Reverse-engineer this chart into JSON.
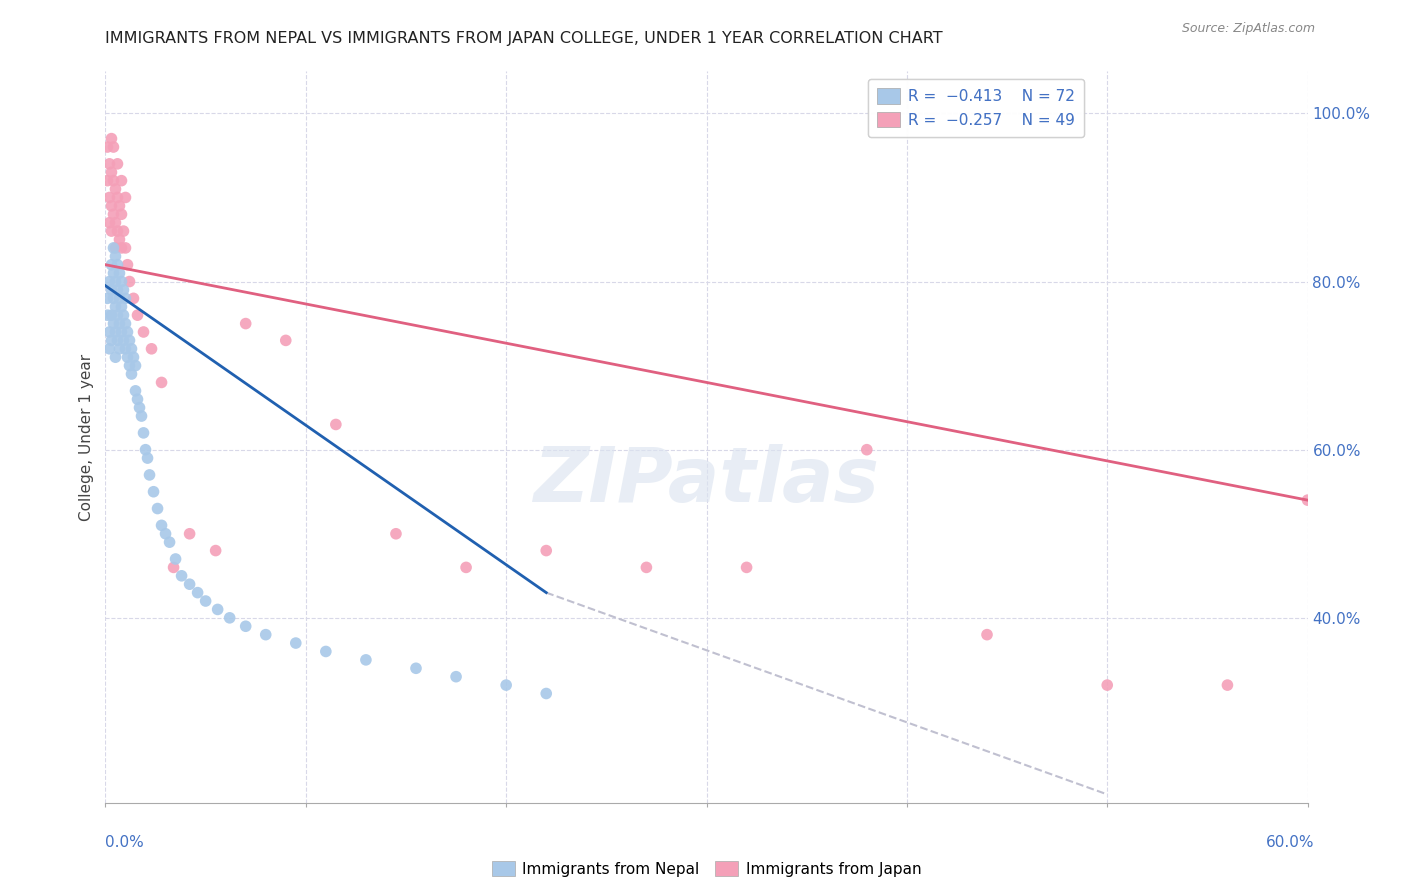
{
  "title": "IMMIGRANTS FROM NEPAL VS IMMIGRANTS FROM JAPAN COLLEGE, UNDER 1 YEAR CORRELATION CHART",
  "source": "Source: ZipAtlas.com",
  "ylabel": "College, Under 1 year",
  "ylabel_right_ticks": [
    "100.0%",
    "80.0%",
    "60.0%",
    "40.0%"
  ],
  "ylabel_right_vals": [
    1.0,
    0.8,
    0.6,
    0.4
  ],
  "xlim": [
    0.0,
    0.6
  ],
  "ylim": [
    0.18,
    1.05
  ],
  "watermark": "ZIPatlas",
  "nepal_color": "#a8c8e8",
  "japan_color": "#f4a0b8",
  "nepal_trend_color": "#2060b0",
  "japan_trend_color": "#e06080",
  "dashed_color": "#c0c0d0",
  "nepal_scatter_x": [
    0.001,
    0.001,
    0.002,
    0.002,
    0.002,
    0.003,
    0.003,
    0.003,
    0.003,
    0.004,
    0.004,
    0.004,
    0.004,
    0.005,
    0.005,
    0.005,
    0.005,
    0.005,
    0.006,
    0.006,
    0.006,
    0.006,
    0.007,
    0.007,
    0.007,
    0.007,
    0.008,
    0.008,
    0.008,
    0.009,
    0.009,
    0.009,
    0.01,
    0.01,
    0.01,
    0.011,
    0.011,
    0.012,
    0.012,
    0.013,
    0.013,
    0.014,
    0.015,
    0.015,
    0.016,
    0.017,
    0.018,
    0.019,
    0.02,
    0.021,
    0.022,
    0.024,
    0.026,
    0.028,
    0.03,
    0.032,
    0.035,
    0.038,
    0.042,
    0.046,
    0.05,
    0.056,
    0.062,
    0.07,
    0.08,
    0.095,
    0.11,
    0.13,
    0.155,
    0.175,
    0.2,
    0.22
  ],
  "nepal_scatter_y": [
    0.78,
    0.76,
    0.8,
    0.74,
    0.72,
    0.82,
    0.79,
    0.76,
    0.73,
    0.84,
    0.81,
    0.78,
    0.75,
    0.83,
    0.8,
    0.77,
    0.74,
    0.71,
    0.82,
    0.79,
    0.76,
    0.73,
    0.81,
    0.78,
    0.75,
    0.72,
    0.8,
    0.77,
    0.74,
    0.79,
    0.76,
    0.73,
    0.78,
    0.75,
    0.72,
    0.74,
    0.71,
    0.73,
    0.7,
    0.72,
    0.69,
    0.71,
    0.7,
    0.67,
    0.66,
    0.65,
    0.64,
    0.62,
    0.6,
    0.59,
    0.57,
    0.55,
    0.53,
    0.51,
    0.5,
    0.49,
    0.47,
    0.45,
    0.44,
    0.43,
    0.42,
    0.41,
    0.4,
    0.39,
    0.38,
    0.37,
    0.36,
    0.35,
    0.34,
    0.33,
    0.32,
    0.31
  ],
  "japan_scatter_x": [
    0.001,
    0.001,
    0.002,
    0.002,
    0.002,
    0.003,
    0.003,
    0.003,
    0.004,
    0.004,
    0.005,
    0.005,
    0.005,
    0.006,
    0.006,
    0.007,
    0.007,
    0.008,
    0.008,
    0.009,
    0.01,
    0.011,
    0.012,
    0.014,
    0.016,
    0.019,
    0.023,
    0.028,
    0.034,
    0.042,
    0.055,
    0.07,
    0.09,
    0.115,
    0.145,
    0.18,
    0.22,
    0.27,
    0.32,
    0.38,
    0.44,
    0.5,
    0.56,
    0.6,
    0.003,
    0.004,
    0.006,
    0.008,
    0.01
  ],
  "japan_scatter_y": [
    0.96,
    0.92,
    0.94,
    0.9,
    0.87,
    0.93,
    0.89,
    0.86,
    0.92,
    0.88,
    0.91,
    0.87,
    0.84,
    0.9,
    0.86,
    0.89,
    0.85,
    0.88,
    0.84,
    0.86,
    0.84,
    0.82,
    0.8,
    0.78,
    0.76,
    0.74,
    0.72,
    0.68,
    0.46,
    0.5,
    0.48,
    0.75,
    0.73,
    0.63,
    0.5,
    0.46,
    0.48,
    0.46,
    0.46,
    0.6,
    0.38,
    0.32,
    0.32,
    0.54,
    0.97,
    0.96,
    0.94,
    0.92,
    0.9
  ],
  "nepal_trend_x": [
    0.0,
    0.22
  ],
  "nepal_trend_y": [
    0.795,
    0.43
  ],
  "japan_trend_x": [
    0.0,
    0.6
  ],
  "japan_trend_y": [
    0.82,
    0.54
  ],
  "dashed_trend_x": [
    0.22,
    0.5
  ],
  "dashed_trend_y": [
    0.43,
    0.19
  ],
  "background_color": "#ffffff",
  "grid_color": "#d8d8e8"
}
